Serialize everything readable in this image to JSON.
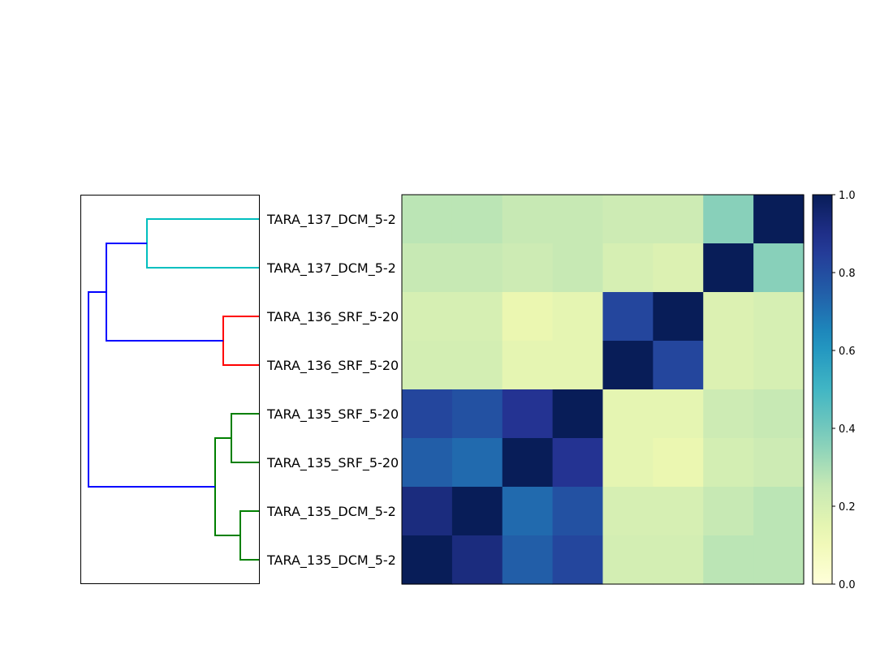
{
  "chart_data": {
    "type": "heatmap",
    "title": "",
    "row_labels": [
      "TARA_137_DCM_5-2",
      "TARA_137_DCM_5-2",
      "TARA_136_SRF_5-20",
      "TARA_136_SRF_5-20",
      "TARA_135_SRF_5-20",
      "TARA_135_SRF_5-20",
      "TARA_135_DCM_5-2",
      "TARA_135_DCM_5-2"
    ],
    "matrix": [
      [
        0.27,
        0.27,
        0.25,
        0.25,
        0.23,
        0.23,
        0.36,
        1.0
      ],
      [
        0.25,
        0.25,
        0.23,
        0.25,
        0.2,
        0.18,
        1.0,
        0.36
      ],
      [
        0.2,
        0.2,
        0.13,
        0.15,
        0.82,
        1.0,
        0.18,
        0.2
      ],
      [
        0.21,
        0.21,
        0.15,
        0.15,
        1.0,
        0.82,
        0.18,
        0.2
      ],
      [
        0.82,
        0.79,
        0.88,
        1.0,
        0.15,
        0.15,
        0.23,
        0.25
      ],
      [
        0.75,
        0.72,
        1.0,
        0.88,
        0.15,
        0.13,
        0.21,
        0.23
      ],
      [
        0.92,
        1.0,
        0.72,
        0.79,
        0.2,
        0.2,
        0.25,
        0.27
      ],
      [
        1.0,
        0.92,
        0.75,
        0.82,
        0.21,
        0.21,
        0.27,
        0.27
      ]
    ],
    "colormap": "YlGnBu",
    "vmin": 0.0,
    "vmax": 1.0,
    "colorbar_ticks": [
      "0.0",
      "0.2",
      "0.4",
      "0.6",
      "0.8",
      "1.0"
    ],
    "dendrogram": {
      "leaf_order": [
        "TARA_137_DCM_5-2",
        "TARA_137_DCM_5-2",
        "TARA_136_SRF_5-20",
        "TARA_136_SRF_5-20",
        "TARA_135_SRF_5-20",
        "TARA_135_SRF_5-20",
        "TARA_135_DCM_5-2",
        "TARA_135_DCM_5-2"
      ],
      "cluster_colors": {
        "cyan": "#00bfbf",
        "red": "#ff0000",
        "green": "#008000",
        "blue": "#0000ff"
      }
    }
  }
}
